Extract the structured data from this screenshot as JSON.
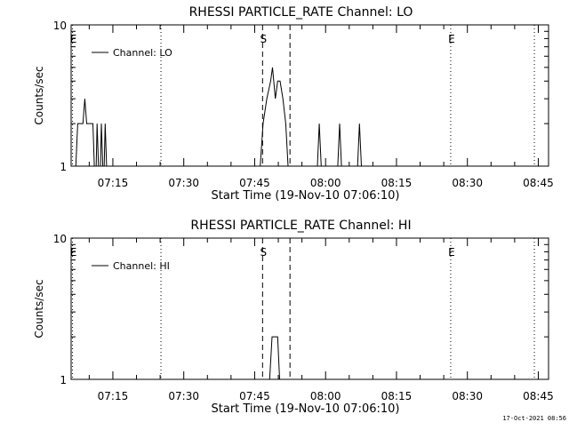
{
  "chart_data": [
    {
      "type": "line",
      "title": "RHESSI PARTICLE_RATE Channel: LO",
      "xlabel": "Start Time (19-Nov-10 07:06:10)",
      "ylabel": "Counts/sec",
      "y_scale": "log",
      "ylim": [
        1,
        10
      ],
      "y_tick_labels": [
        "1",
        "10"
      ],
      "x_unit": "minutes since 07:06:10",
      "xlim": [
        0,
        101
      ],
      "x_ticks": [
        {
          "label": "07:15",
          "value": 8.83
        },
        {
          "label": "07:30",
          "value": 23.83
        },
        {
          "label": "07:45",
          "value": 38.83
        },
        {
          "label": "08:00",
          "value": 53.83
        },
        {
          "label": "08:15",
          "value": 68.83
        },
        {
          "label": "08:30",
          "value": 83.83
        },
        {
          "label": "08:45",
          "value": 98.83
        }
      ],
      "legend": {
        "entries": [
          "Channel: LO"
        ],
        "placement": "top-left"
      },
      "markers": [
        {
          "label": "E",
          "x": 0.3,
          "style": "dotted"
        },
        {
          "label": "",
          "x": 19.0,
          "style": "dotted"
        },
        {
          "label": "S",
          "x": 40.5,
          "style": "dashed"
        },
        {
          "label": "",
          "x": 46.3,
          "style": "dashed"
        },
        {
          "label": "E",
          "x": 80.3,
          "style": "dotted"
        },
        {
          "label": "",
          "x": 98.0,
          "style": "dotted"
        }
      ],
      "series": [
        {
          "name": "Channel: LO",
          "segments": [
            [
              [
                1.0,
                1
              ],
              [
                1.4,
                2
              ],
              [
                2.5,
                2
              ],
              [
                2.9,
                3
              ],
              [
                3.3,
                2
              ],
              [
                4.6,
                2
              ],
              [
                4.9,
                1
              ]
            ],
            [
              [
                5.3,
                1
              ],
              [
                5.5,
                2
              ],
              [
                5.8,
                1
              ]
            ],
            [
              [
                6.2,
                1
              ],
              [
                6.4,
                2
              ],
              [
                6.7,
                1
              ]
            ],
            [
              [
                7.0,
                1
              ],
              [
                7.2,
                2
              ],
              [
                7.5,
                1
              ]
            ],
            [
              [
                40.0,
                1
              ],
              [
                40.6,
                2
              ],
              [
                41.4,
                3
              ],
              [
                42.2,
                4
              ],
              [
                42.6,
                5
              ],
              [
                43.2,
                3
              ],
              [
                43.7,
                4
              ],
              [
                44.2,
                4
              ],
              [
                44.8,
                3
              ],
              [
                45.4,
                2
              ],
              [
                45.9,
                1
              ]
            ],
            [
              [
                52.1,
                1
              ],
              [
                52.5,
                2
              ],
              [
                52.9,
                1
              ]
            ],
            [
              [
                56.4,
                1
              ],
              [
                56.8,
                2
              ],
              [
                57.2,
                1
              ]
            ],
            [
              [
                60.6,
                1
              ],
              [
                61.0,
                2
              ],
              [
                61.4,
                1
              ]
            ]
          ]
        }
      ]
    },
    {
      "type": "line",
      "title": "RHESSI PARTICLE_RATE Channel: HI",
      "xlabel": "Start Time (19-Nov-10 07:06:10)",
      "ylabel": "Counts/sec",
      "y_scale": "log",
      "ylim": [
        1,
        10
      ],
      "y_tick_labels": [
        "1",
        "10"
      ],
      "x_unit": "minutes since 07:06:10",
      "xlim": [
        0,
        101
      ],
      "x_ticks": [
        {
          "label": "07:15",
          "value": 8.83
        },
        {
          "label": "07:30",
          "value": 23.83
        },
        {
          "label": "07:45",
          "value": 38.83
        },
        {
          "label": "08:00",
          "value": 53.83
        },
        {
          "label": "08:15",
          "value": 68.83
        },
        {
          "label": "08:30",
          "value": 83.83
        },
        {
          "label": "08:45",
          "value": 98.83
        }
      ],
      "legend": {
        "entries": [
          "Channel: HI"
        ],
        "placement": "top-left"
      },
      "markers": [
        {
          "label": "E",
          "x": 0.3,
          "style": "dotted"
        },
        {
          "label": "",
          "x": 19.0,
          "style": "dotted"
        },
        {
          "label": "S",
          "x": 40.5,
          "style": "dashed"
        },
        {
          "label": "",
          "x": 46.3,
          "style": "dashed"
        },
        {
          "label": "E",
          "x": 80.3,
          "style": "dotted"
        },
        {
          "label": "",
          "x": 98.0,
          "style": "dotted"
        }
      ],
      "series": [
        {
          "name": "Channel: HI",
          "segments": [
            [
              [
                42.0,
                1
              ],
              [
                42.5,
                2
              ],
              [
                43.7,
                2
              ],
              [
                44.1,
                1
              ]
            ]
          ]
        }
      ]
    }
  ],
  "footer": {
    "timestamp": "17-Oct-2021 08:56"
  }
}
